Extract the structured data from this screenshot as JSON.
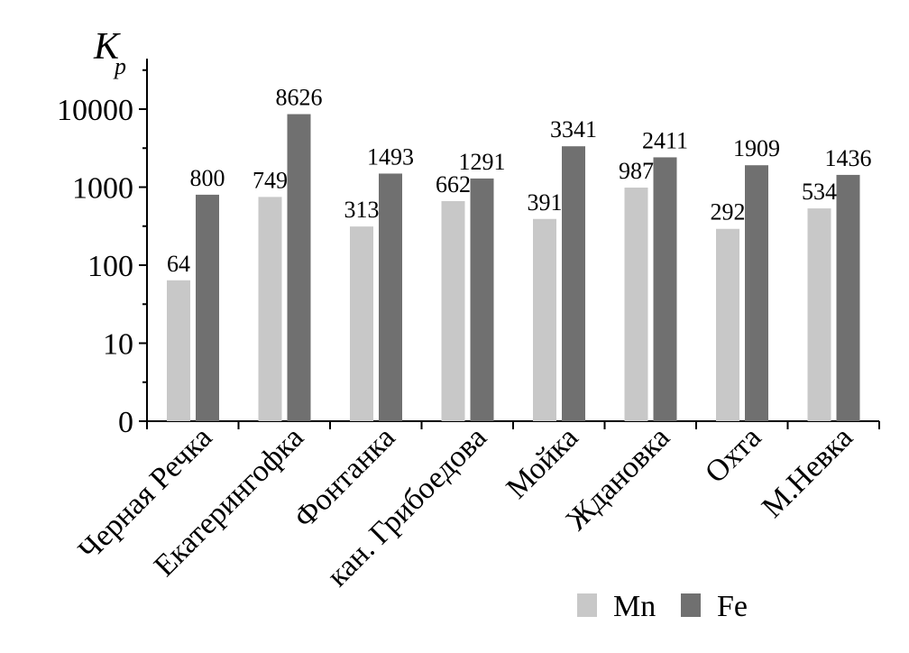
{
  "chart_data": {
    "type": "bar",
    "title": "",
    "ylabel_main": "K",
    "ylabel_sub": "p",
    "xlabel": "",
    "y_scale": "log",
    "y_ticks": [
      {
        "label": "0",
        "level": 0
      },
      {
        "label": "10",
        "level": 1
      },
      {
        "label": "100",
        "level": 2
      },
      {
        "label": "1000",
        "level": 3
      },
      {
        "label": "10000",
        "level": 4
      }
    ],
    "categories": [
      "Черная Речка",
      "Екатерингофка",
      "Фонтанка",
      "кан. Грибоедова",
      "Мойка",
      "Ждановка",
      "Охта",
      "М.Невка"
    ],
    "series": [
      {
        "name": "Mn",
        "color": "#c8c8c8",
        "values": [
          64,
          749,
          313,
          662,
          391,
          987,
          292,
          534
        ]
      },
      {
        "name": "Fe",
        "color": "#707070",
        "values": [
          800,
          8626,
          1493,
          1291,
          3341,
          2411,
          1909,
          1436
        ]
      }
    ],
    "data_labels": true,
    "grid": false,
    "legend_position": "bottom-right"
  }
}
